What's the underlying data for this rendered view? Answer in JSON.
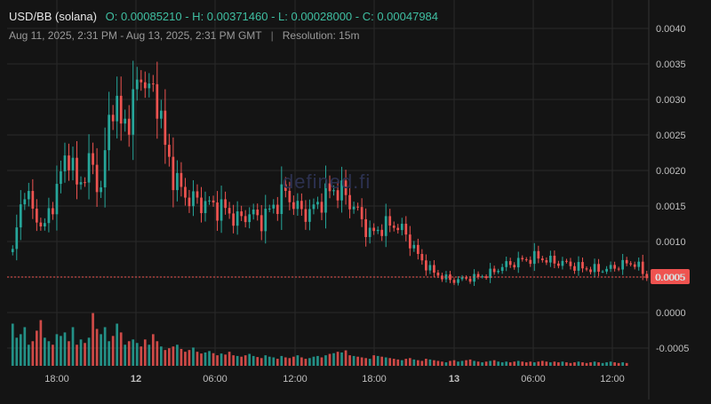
{
  "header": {
    "symbol": "USD/BB (solana)",
    "ohlc": "O: 0.00085210 - H: 0.00371460 - L: 0.00028000 - C: 0.00047984",
    "range": "Aug 11, 2025, 2:31 PM - Aug 13, 2025, 2:31 PM GMT",
    "separator": "|",
    "resolution": "Resolution: 15m"
  },
  "watermark": "defined.fi",
  "colors": {
    "background": "#141414",
    "up": "#26a69a",
    "down": "#ef5350",
    "grid": "#2a2a2a",
    "last_price": "#ef5350",
    "axis_text": "#bfbfbf"
  },
  "chart_data": {
    "type": "candlestick",
    "title": "",
    "xlabel": "",
    "ylabel": "",
    "x_ticks": [
      "18:00",
      "12",
      "06:00",
      "12:00",
      "18:00",
      "13",
      "06:00",
      "12:00"
    ],
    "y_ticks": [
      "0.0040",
      "0.0035",
      "0.0030",
      "0.0025",
      "0.0020",
      "0.0015",
      "0.0010",
      "0.0005",
      "0.0000",
      "-0.0005"
    ],
    "ylim": [
      -0.00075,
      0.0044
    ],
    "last_price_label": "0.0005",
    "last_price": 0.0005,
    "grid": true,
    "anchors": [
      [
        0,
        0.00085
      ],
      [
        3,
        0.0018
      ],
      [
        5,
        0.0014
      ],
      [
        8,
        0.0012
      ],
      [
        11,
        0.00175
      ],
      [
        14,
        0.0023
      ],
      [
        16,
        0.00175
      ],
      [
        19,
        0.0021
      ],
      [
        22,
        0.00175
      ],
      [
        25,
        0.0031
      ],
      [
        27,
        0.0026
      ],
      [
        30,
        0.0029
      ],
      [
        32,
        0.00345
      ],
      [
        34,
        0.00305
      ],
      [
        36,
        0.0031
      ],
      [
        38,
        0.0023
      ],
      [
        41,
        0.0018
      ],
      [
        44,
        0.0016
      ],
      [
        47,
        0.00155
      ],
      [
        50,
        0.0015
      ],
      [
        53,
        0.00145
      ],
      [
        56,
        0.0013
      ],
      [
        59,
        0.0014
      ],
      [
        62,
        0.0013
      ],
      [
        65,
        0.0015
      ],
      [
        68,
        0.0017
      ],
      [
        71,
        0.00145
      ],
      [
        74,
        0.0014
      ],
      [
        77,
        0.0016
      ],
      [
        80,
        0.00175
      ],
      [
        83,
        0.00165
      ],
      [
        86,
        0.0014
      ],
      [
        89,
        0.0011
      ],
      [
        92,
        0.0012
      ],
      [
        95,
        0.00125
      ],
      [
        98,
        0.0011
      ],
      [
        101,
        0.0008
      ],
      [
        104,
        0.0006
      ],
      [
        107,
        0.0005
      ],
      [
        110,
        0.00045
      ],
      [
        113,
        0.00048
      ],
      [
        116,
        0.0005
      ],
      [
        119,
        0.00055
      ],
      [
        122,
        0.00065
      ],
      [
        125,
        0.0007
      ],
      [
        128,
        0.00075
      ],
      [
        131,
        0.00078
      ],
      [
        134,
        0.00072
      ],
      [
        137,
        0.0007
      ],
      [
        140,
        0.00065
      ],
      [
        143,
        0.00062
      ],
      [
        146,
        0.0006
      ],
      [
        149,
        0.00062
      ],
      [
        152,
        0.00068
      ],
      [
        155,
        0.0007
      ],
      [
        158,
        0.0005
      ]
    ],
    "volume": [
      120,
      80,
      90,
      110,
      60,
      70,
      100,
      130,
      80,
      70,
      60,
      90,
      85,
      95,
      70,
      110,
      60,
      75,
      65,
      80,
      150,
      105,
      90,
      110,
      70,
      85,
      120,
      95,
      60,
      70,
      75,
      65,
      55,
      75,
      60,
      90,
      70,
      55,
      45,
      50,
      55,
      60,
      48,
      40,
      45,
      52,
      40,
      35,
      38,
      42,
      36,
      30,
      35,
      32,
      40,
      30,
      28,
      26,
      30,
      34,
      28,
      25,
      22,
      30,
      26,
      24,
      20,
      28,
      24,
      22,
      26,
      30,
      24,
      20,
      22,
      26,
      28,
      24,
      30,
      34,
      36,
      40,
      38,
      44,
      30,
      28,
      26,
      24,
      22,
      20,
      30,
      28,
      26,
      24,
      22,
      20,
      18,
      16,
      20,
      22,
      18,
      16,
      14,
      20,
      18,
      16,
      14,
      12,
      10,
      14,
      16,
      12,
      14,
      16,
      18,
      14,
      12,
      10,
      12,
      14,
      16,
      12,
      10,
      12,
      10,
      12,
      14,
      12,
      10,
      12,
      10,
      12,
      14,
      12,
      10,
      12,
      10,
      12,
      10,
      8,
      10,
      12,
      10,
      8,
      10,
      12,
      10,
      8,
      10,
      12,
      10,
      8,
      10,
      8
    ],
    "volume_ylim": [
      0,
      220
    ]
  }
}
